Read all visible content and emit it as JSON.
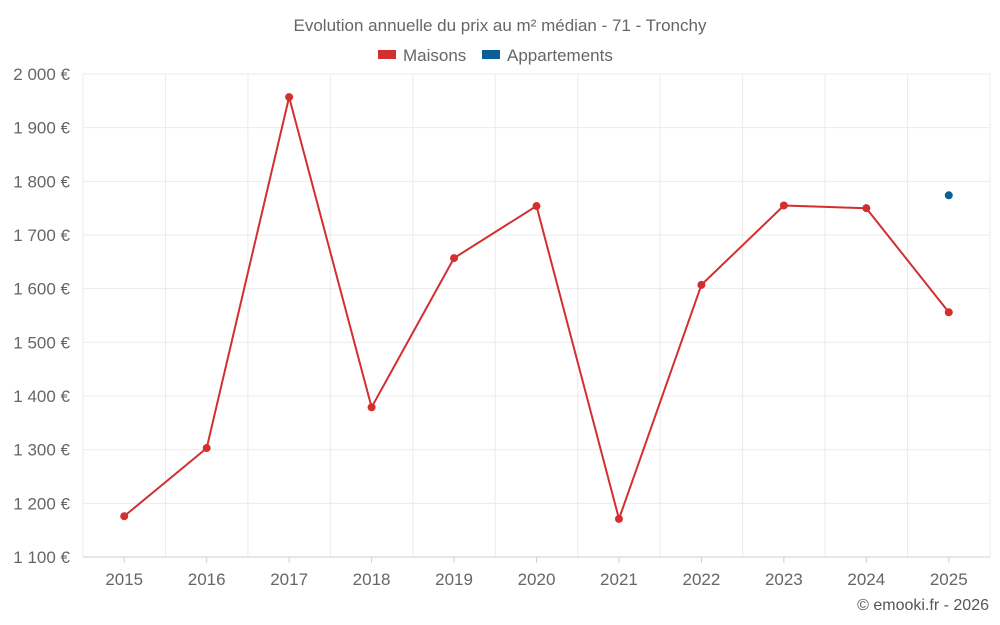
{
  "chart_data": {
    "type": "line",
    "title": "Evolution annuelle du prix au m² médian - 71 - Tronchy",
    "categories": [
      "2015",
      "2016",
      "2017",
      "2018",
      "2019",
      "2020",
      "2021",
      "2022",
      "2023",
      "2024",
      "2025"
    ],
    "series": [
      {
        "name": "Maisons",
        "color": "#d32f2f",
        "values": [
          1176,
          1303,
          1957,
          1379,
          1657,
          1754,
          1171,
          1607,
          1755,
          1750,
          1556
        ]
      },
      {
        "name": "Appartements",
        "color": "#0a5f96",
        "values": [
          null,
          null,
          null,
          null,
          null,
          null,
          null,
          null,
          null,
          null,
          1774
        ]
      }
    ],
    "ylim": [
      1100,
      2000
    ],
    "yticks": [
      1100,
      1200,
      1300,
      1400,
      1500,
      1600,
      1700,
      1800,
      1900,
      2000
    ],
    "ytick_labels": [
      "1 100 €",
      "1 200 €",
      "1 300 €",
      "1 400 €",
      "1 500 €",
      "1 600 €",
      "1 700 €",
      "1 800 €",
      "1 900 €",
      "2 000 €"
    ],
    "grid": true,
    "legend_position": "top-center"
  },
  "footer": {
    "credit": "© emooki.fr - 2026"
  }
}
